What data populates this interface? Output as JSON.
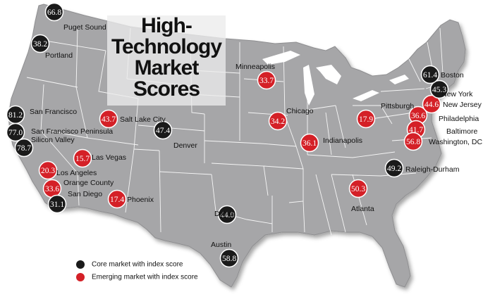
{
  "title": [
    "High-",
    "Technology",
    "Market",
    "Scores"
  ],
  "colors": {
    "core": "#1a1a1a",
    "emerging": "#d42027",
    "map_fill": "#a6a6a8",
    "border": "#ffffff"
  },
  "legend": [
    {
      "type": "core",
      "label": "Core market with index score"
    },
    {
      "type": "emerging",
      "label": "Emerging market with index score"
    }
  ],
  "markets": [
    {
      "name": "Puget Sound",
      "score": "66.8",
      "type": "core"
    },
    {
      "name": "Portland",
      "score": "38.2",
      "type": "core"
    },
    {
      "name": "San Francisco",
      "score": "81.2",
      "type": "core"
    },
    {
      "name": "San Francisco Peninsula",
      "score": "77.0",
      "type": "core"
    },
    {
      "name": "Silicon Valley",
      "score": "78.7",
      "type": "core"
    },
    {
      "name": "Salt Lake City",
      "score": "43.7",
      "type": "emerging"
    },
    {
      "name": "Las Vegas",
      "score": "15.7",
      "type": "emerging"
    },
    {
      "name": "Los Angeles",
      "score": "20.3",
      "type": "emerging"
    },
    {
      "name": "Orange County",
      "score": "33.6",
      "type": "emerging"
    },
    {
      "name": "San Diego",
      "score": "31.1",
      "type": "core"
    },
    {
      "name": "Phoenix",
      "score": "17.4",
      "type": "emerging"
    },
    {
      "name": "Denver",
      "score": "47.4",
      "type": "core"
    },
    {
      "name": "Minneapolis",
      "score": "33.7",
      "type": "emerging"
    },
    {
      "name": "Dallas",
      "score": "44.0",
      "type": "core"
    },
    {
      "name": "Austin",
      "score": "58.8",
      "type": "core"
    },
    {
      "name": "Chicago",
      "score": "34.2",
      "type": "emerging"
    },
    {
      "name": "Indianapolis",
      "score": "36.1",
      "type": "emerging"
    },
    {
      "name": "Pittsburgh",
      "score": "17.9",
      "type": "emerging"
    },
    {
      "name": "Atlanta",
      "score": "50.3",
      "type": "emerging"
    },
    {
      "name": "Raleigh-Durham",
      "score": "49.2",
      "type": "core"
    },
    {
      "name": "Philadelphia",
      "score": "36.6",
      "type": "emerging"
    },
    {
      "name": "Baltimore",
      "score": "41.7",
      "type": "emerging"
    },
    {
      "name": "Washington, DC",
      "score": "56.8",
      "type": "emerging"
    },
    {
      "name": "New Jersey",
      "score": "44.6",
      "type": "emerging"
    },
    {
      "name": "New York",
      "score": "45.3",
      "type": "core"
    },
    {
      "name": "Boston",
      "score": "61.4",
      "type": "core"
    }
  ]
}
